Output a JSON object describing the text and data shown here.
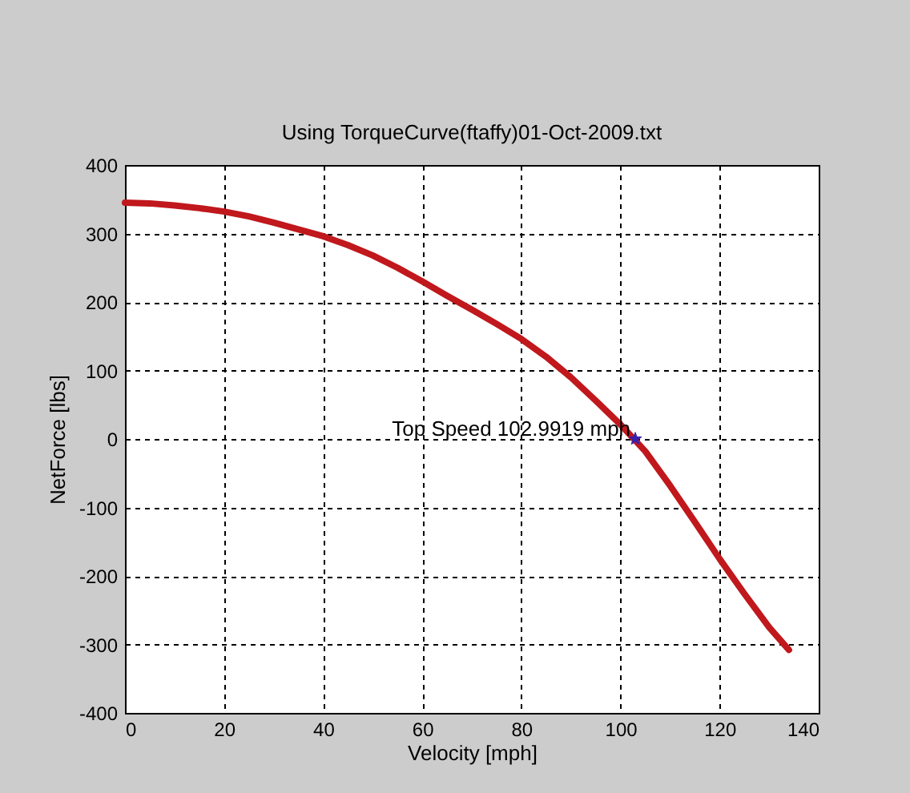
{
  "chart_data": {
    "type": "line",
    "title": "Using TorqueCurve(ftaffy)01-Oct-2009.txt",
    "xlabel": "Velocity [mph]",
    "ylabel": "NetForce [lbs]",
    "xlim": [
      0,
      140
    ],
    "xticks": [
      0,
      20,
      40,
      60,
      80,
      100,
      120,
      140
    ],
    "ylim": [
      -400,
      400
    ],
    "yticks": [
      -400,
      -300,
      -200,
      -100,
      0,
      100,
      200,
      300,
      400
    ],
    "grid": true,
    "series": [
      {
        "color": "#c0181c",
        "x": [
          0,
          5,
          10,
          15,
          20,
          25,
          30,
          35,
          40,
          45,
          50,
          55,
          60,
          65,
          70,
          75,
          80,
          85,
          90,
          95,
          100,
          105,
          110,
          115,
          120,
          125,
          130,
          134
        ],
        "values": [
          345,
          344,
          341,
          337,
          332,
          325,
          316,
          306,
          296,
          283,
          268,
          250,
          230,
          209,
          189,
          168,
          146,
          120,
          90,
          56,
          21,
          -18,
          -68,
          -121,
          -175,
          -226,
          -275,
          -308
        ]
      },
      {
        "type": "scatter",
        "color": "#3a1fa8",
        "marker": "star",
        "x": [
          102.9919
        ],
        "values": [
          0
        ]
      }
    ],
    "annotations": [
      {
        "text": "Top Speed 102.9919 mph",
        "x": 102.9919,
        "y": 0
      }
    ]
  }
}
